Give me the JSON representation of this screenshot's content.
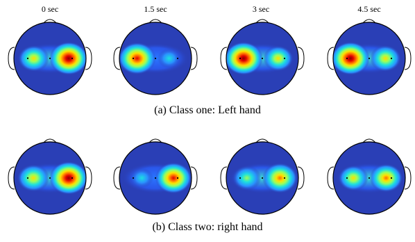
{
  "time_labels": [
    "0 sec",
    "1.5 sec",
    "3 sec",
    "4.5 sec"
  ],
  "captions": {
    "class_one": "(a) Class one: Left hand",
    "class_two": "(b) Class two: right hand"
  },
  "colors": {
    "background_blue": "#2a3fb6",
    "outline": "#000000"
  },
  "maps": {
    "class_one": [
      {
        "time": "0 sec",
        "left": 0.65,
        "right": 1.0
      },
      {
        "time": "1.5 sec",
        "left": 0.95,
        "right": 0.3
      },
      {
        "time": "3 sec",
        "left": 1.0,
        "right": 0.6
      },
      {
        "time": "4.5 sec",
        "left": 1.0,
        "right": 0.65
      }
    ],
    "class_two": [
      {
        "time": "0 sec",
        "left": 0.7,
        "right": 1.0
      },
      {
        "time": "1.5 sec",
        "left": 0.3,
        "right": 0.9
      },
      {
        "time": "3 sec",
        "left": 0.55,
        "right": 0.85
      },
      {
        "time": "4.5 sec",
        "left": 0.6,
        "right": 0.75
      }
    ]
  }
}
